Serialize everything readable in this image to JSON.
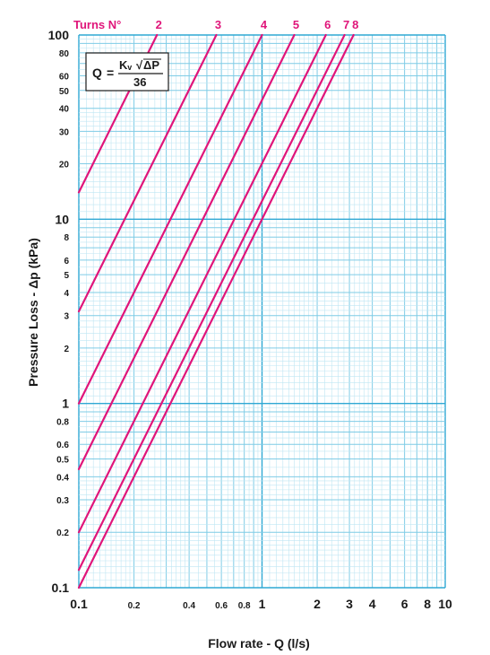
{
  "chart_data": {
    "type": "line",
    "x_scale": "log",
    "y_scale": "log",
    "xlim": [
      0.1,
      10
    ],
    "ylim": [
      0.1,
      100
    ],
    "grid": true,
    "xlabel": "Flow rate - Q (l/s)",
    "ylabel": "Pressure Loss  - Δp (kPa)",
    "legend_title": "Turns N°",
    "formula": {
      "lhs": "Q",
      "equals": "=",
      "numerator_k": "Kᵥ",
      "numerator_dp": "ΔP",
      "denominator": "36"
    },
    "x_ticks": [
      "0.1",
      "0.2",
      "0.4",
      "0.6",
      "0.8",
      "1",
      "2",
      "3",
      "4",
      "6",
      "8",
      "10"
    ],
    "x_tick_values": [
      0.1,
      0.2,
      0.4,
      0.6,
      0.8,
      1,
      2,
      3,
      4,
      6,
      8,
      10
    ],
    "y_ticks": [
      "0.1",
      "0.2",
      "0.3",
      "0.4",
      "0.5",
      "0.6",
      "0.8",
      "1",
      "2",
      "3",
      "4",
      "5",
      "6",
      "8",
      "10",
      "20",
      "30",
      "40",
      "50",
      "60",
      "80",
      "100"
    ],
    "y_tick_values": [
      0.1,
      0.2,
      0.3,
      0.4,
      0.5,
      0.6,
      0.8,
      1,
      2,
      3,
      4,
      5,
      6,
      8,
      10,
      20,
      30,
      40,
      50,
      60,
      80,
      100
    ],
    "series": [
      {
        "name": "2",
        "points": [
          [
            0.1,
            14.0
          ],
          [
            0.267,
            100
          ]
        ]
      },
      {
        "name": "3",
        "points": [
          [
            0.1,
            3.16
          ],
          [
            0.563,
            100
          ]
        ]
      },
      {
        "name": "4",
        "points": [
          [
            0.1,
            1.0
          ],
          [
            1.0,
            100
          ]
        ]
      },
      {
        "name": "5",
        "points": [
          [
            0.1,
            0.44
          ],
          [
            1.5,
            100
          ]
        ]
      },
      {
        "name": "6",
        "points": [
          [
            0.1,
            0.2
          ],
          [
            2.23,
            100
          ]
        ]
      },
      {
        "name": "7",
        "points": [
          [
            0.1,
            0.125
          ],
          [
            2.82,
            100
          ]
        ]
      },
      {
        "name": "8",
        "points": [
          [
            0.1,
            0.1
          ],
          [
            3.16,
            100
          ]
        ]
      }
    ]
  },
  "colors": {
    "grid_fine": "#bfe6f3",
    "grid_mid": "#7fcce6",
    "grid_major": "#2fa8d4",
    "curve": "#e0157a",
    "text": "#1a1a1a"
  }
}
